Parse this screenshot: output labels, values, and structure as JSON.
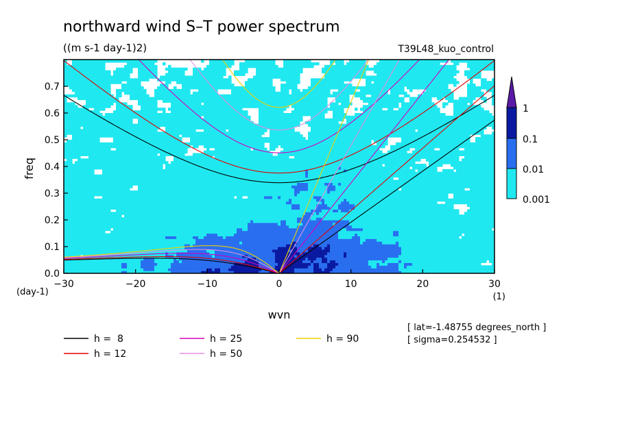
{
  "chart_data": {
    "type": "heatmap",
    "title": "northward wind S–T power spectrum",
    "subtitle": "((m s-1 day-1)2)",
    "run_label": "T39L48_kuo_control",
    "xlabel": "wvn",
    "x_unit": "(1)",
    "ylabel": "freq",
    "y_unit": "(day-1)",
    "xlim": [
      -30,
      30
    ],
    "ylim": [
      0,
      0.8
    ],
    "x_ticks": [
      -30,
      -20,
      -10,
      0,
      10,
      20,
      30
    ],
    "y_ticks": [
      0.0,
      0.1,
      0.2,
      0.3,
      0.4,
      0.5,
      0.6,
      0.7
    ],
    "x_tick_labels": [
      "−30",
      "−20",
      "−10",
      "0",
      "10",
      "20",
      "30"
    ],
    "y_tick_labels": [
      "0.0",
      "0.1",
      "0.2",
      "0.3",
      "0.4",
      "0.5",
      "0.6",
      "0.7"
    ],
    "colorbar": {
      "levels": [
        "1",
        "0.1",
        "0.01",
        "0.001"
      ],
      "colors": [
        "#5a1aa8",
        "#0a1aa0",
        "#2a6ef0",
        "#20e8f0"
      ]
    },
    "dispersion_curves": [
      {
        "label": "h =  8",
        "h": 8,
        "color": "#000000"
      },
      {
        "label": "h = 12",
        "h": 12,
        "color": "#e00000"
      },
      {
        "label": "h = 25",
        "h": 25,
        "color": "#d000c0"
      },
      {
        "label": "h = 50",
        "h": 50,
        "color": "#e090e0"
      },
      {
        "label": "h = 90",
        "h": 90,
        "color": "#f0d000"
      }
    ],
    "annotations": [
      "[ lat=-1.48755 degrees_north ]",
      "[ sigma=0.254532 ]"
    ]
  }
}
